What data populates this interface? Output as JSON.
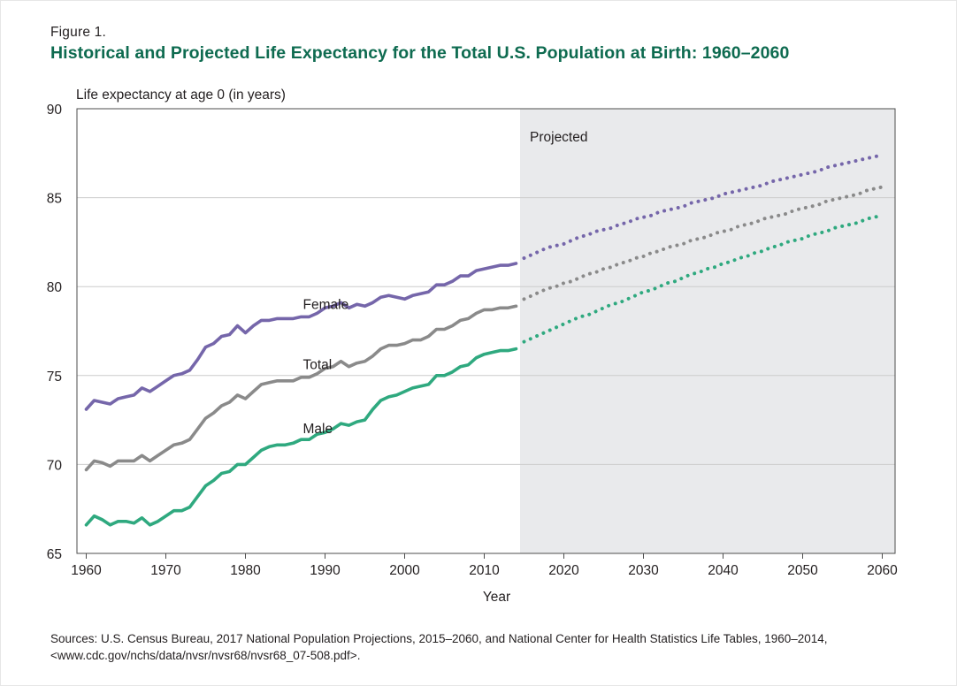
{
  "figure_label": "Figure 1.",
  "title": "Historical and Projected Life Expectancy for the Total U.S. Population at Birth: 1960–2060",
  "source": "Sources: U.S. Census Bureau, 2017 National Population Projections, 2015–2060, and National Center for Health Statistics Life Tables, 1960–2014, <www.cdc.gov/nchs/data/nvsr/nvsr68/nvsr68_07-508.pdf>.",
  "colors": {
    "female": "#7566aa",
    "total": "#8a8a8a",
    "male": "#2fa97f",
    "projected_shade": "#e9eaec",
    "grid": "#cccccc",
    "title": "#0e6b50"
  },
  "chart_data": {
    "type": "line",
    "title": "Historical and Projected Life Expectancy for the Total U.S. Population at Birth: 1960–2060",
    "xlabel": "Year",
    "ylabel": "Life expectancy at age 0  (in years)",
    "xlim": [
      1960,
      2060
    ],
    "ylim": [
      65,
      90
    ],
    "x_ticks": [
      1960,
      1970,
      1980,
      1990,
      2000,
      2010,
      2020,
      2030,
      2040,
      2050,
      2060
    ],
    "y_ticks": [
      65,
      70,
      75,
      80,
      85,
      90
    ],
    "grid": "horizontal",
    "projected_region": {
      "from": 2014.5,
      "to": 2060,
      "label": "Projected"
    },
    "historical_x": [
      1960,
      1961,
      1962,
      1963,
      1964,
      1965,
      1966,
      1967,
      1968,
      1969,
      1970,
      1971,
      1972,
      1973,
      1974,
      1975,
      1976,
      1977,
      1978,
      1979,
      1980,
      1981,
      1982,
      1983,
      1984,
      1985,
      1986,
      1987,
      1988,
      1989,
      1990,
      1991,
      1992,
      1993,
      1994,
      1995,
      1996,
      1997,
      1998,
      1999,
      2000,
      2001,
      2002,
      2003,
      2004,
      2005,
      2006,
      2007,
      2008,
      2009,
      2010,
      2011,
      2012,
      2013,
      2014
    ],
    "projected_x": [
      2015,
      2016,
      2017,
      2018,
      2019,
      2020,
      2021,
      2022,
      2023,
      2024,
      2025,
      2026,
      2027,
      2028,
      2029,
      2030,
      2031,
      2032,
      2033,
      2034,
      2035,
      2036,
      2037,
      2038,
      2039,
      2040,
      2041,
      2042,
      2043,
      2044,
      2045,
      2046,
      2047,
      2048,
      2049,
      2050,
      2051,
      2052,
      2053,
      2054,
      2055,
      2056,
      2057,
      2058,
      2059,
      2060
    ],
    "series": [
      {
        "name": "Female",
        "label_at": [
          1985,
          79.0
        ],
        "historical": [
          73.1,
          73.6,
          73.5,
          73.4,
          73.7,
          73.8,
          73.9,
          74.3,
          74.1,
          74.4,
          74.7,
          75.0,
          75.1,
          75.3,
          75.9,
          76.6,
          76.8,
          77.2,
          77.3,
          77.8,
          77.4,
          77.8,
          78.1,
          78.1,
          78.2,
          78.2,
          78.2,
          78.3,
          78.3,
          78.5,
          78.8,
          78.9,
          79.1,
          78.8,
          79.0,
          78.9,
          79.1,
          79.4,
          79.5,
          79.4,
          79.3,
          79.5,
          79.6,
          79.7,
          80.1,
          80.1,
          80.3,
          80.6,
          80.6,
          80.9,
          81.0,
          81.1,
          81.2,
          81.2,
          81.3
        ],
        "projected": [
          81.6,
          81.8,
          82.0,
          82.2,
          82.3,
          82.4,
          82.6,
          82.8,
          82.9,
          83.1,
          83.2,
          83.3,
          83.5,
          83.6,
          83.8,
          83.9,
          84.0,
          84.2,
          84.3,
          84.4,
          84.5,
          84.7,
          84.8,
          84.9,
          85.0,
          85.2,
          85.3,
          85.4,
          85.5,
          85.6,
          85.7,
          85.9,
          86.0,
          86.1,
          86.2,
          86.3,
          86.4,
          86.5,
          86.7,
          86.8,
          86.9,
          87.0,
          87.1,
          87.2,
          87.3,
          87.4
        ]
      },
      {
        "name": "Total",
        "label_at": [
          1985,
          75.6
        ],
        "historical": [
          69.7,
          70.2,
          70.1,
          69.9,
          70.2,
          70.2,
          70.2,
          70.5,
          70.2,
          70.5,
          70.8,
          71.1,
          71.2,
          71.4,
          72.0,
          72.6,
          72.9,
          73.3,
          73.5,
          73.9,
          73.7,
          74.1,
          74.5,
          74.6,
          74.7,
          74.7,
          74.7,
          74.9,
          74.9,
          75.1,
          75.4,
          75.5,
          75.8,
          75.5,
          75.7,
          75.8,
          76.1,
          76.5,
          76.7,
          76.7,
          76.8,
          77.0,
          77.0,
          77.2,
          77.6,
          77.6,
          77.8,
          78.1,
          78.2,
          78.5,
          78.7,
          78.7,
          78.8,
          78.8,
          78.9
        ],
        "projected": [
          79.3,
          79.5,
          79.7,
          79.9,
          80.0,
          80.2,
          80.3,
          80.5,
          80.7,
          80.8,
          81.0,
          81.1,
          81.3,
          81.4,
          81.6,
          81.7,
          81.9,
          82.0,
          82.2,
          82.3,
          82.4,
          82.6,
          82.7,
          82.8,
          83.0,
          83.1,
          83.2,
          83.4,
          83.5,
          83.6,
          83.8,
          83.9,
          84.0,
          84.1,
          84.3,
          84.4,
          84.5,
          84.6,
          84.8,
          84.9,
          85.0,
          85.1,
          85.2,
          85.4,
          85.5,
          85.6
        ]
      },
      {
        "name": "Male",
        "label_at": [
          1985,
          72.0
        ],
        "historical": [
          66.6,
          67.1,
          66.9,
          66.6,
          66.8,
          66.8,
          66.7,
          67.0,
          66.6,
          66.8,
          67.1,
          67.4,
          67.4,
          67.6,
          68.2,
          68.8,
          69.1,
          69.5,
          69.6,
          70.0,
          70.0,
          70.4,
          70.8,
          71.0,
          71.1,
          71.1,
          71.2,
          71.4,
          71.4,
          71.7,
          71.8,
          72.0,
          72.3,
          72.2,
          72.4,
          72.5,
          73.1,
          73.6,
          73.8,
          73.9,
          74.1,
          74.3,
          74.4,
          74.5,
          75.0,
          75.0,
          75.2,
          75.5,
          75.6,
          76.0,
          76.2,
          76.3,
          76.4,
          76.4,
          76.5
        ],
        "projected": [
          76.9,
          77.1,
          77.3,
          77.5,
          77.7,
          77.9,
          78.1,
          78.3,
          78.4,
          78.6,
          78.8,
          79.0,
          79.1,
          79.3,
          79.5,
          79.7,
          79.8,
          80.0,
          80.2,
          80.3,
          80.5,
          80.7,
          80.8,
          81.0,
          81.1,
          81.3,
          81.4,
          81.6,
          81.7,
          81.9,
          82.0,
          82.2,
          82.3,
          82.5,
          82.6,
          82.7,
          82.9,
          83.0,
          83.1,
          83.3,
          83.4,
          83.5,
          83.6,
          83.8,
          83.9,
          84.0
        ]
      }
    ]
  }
}
